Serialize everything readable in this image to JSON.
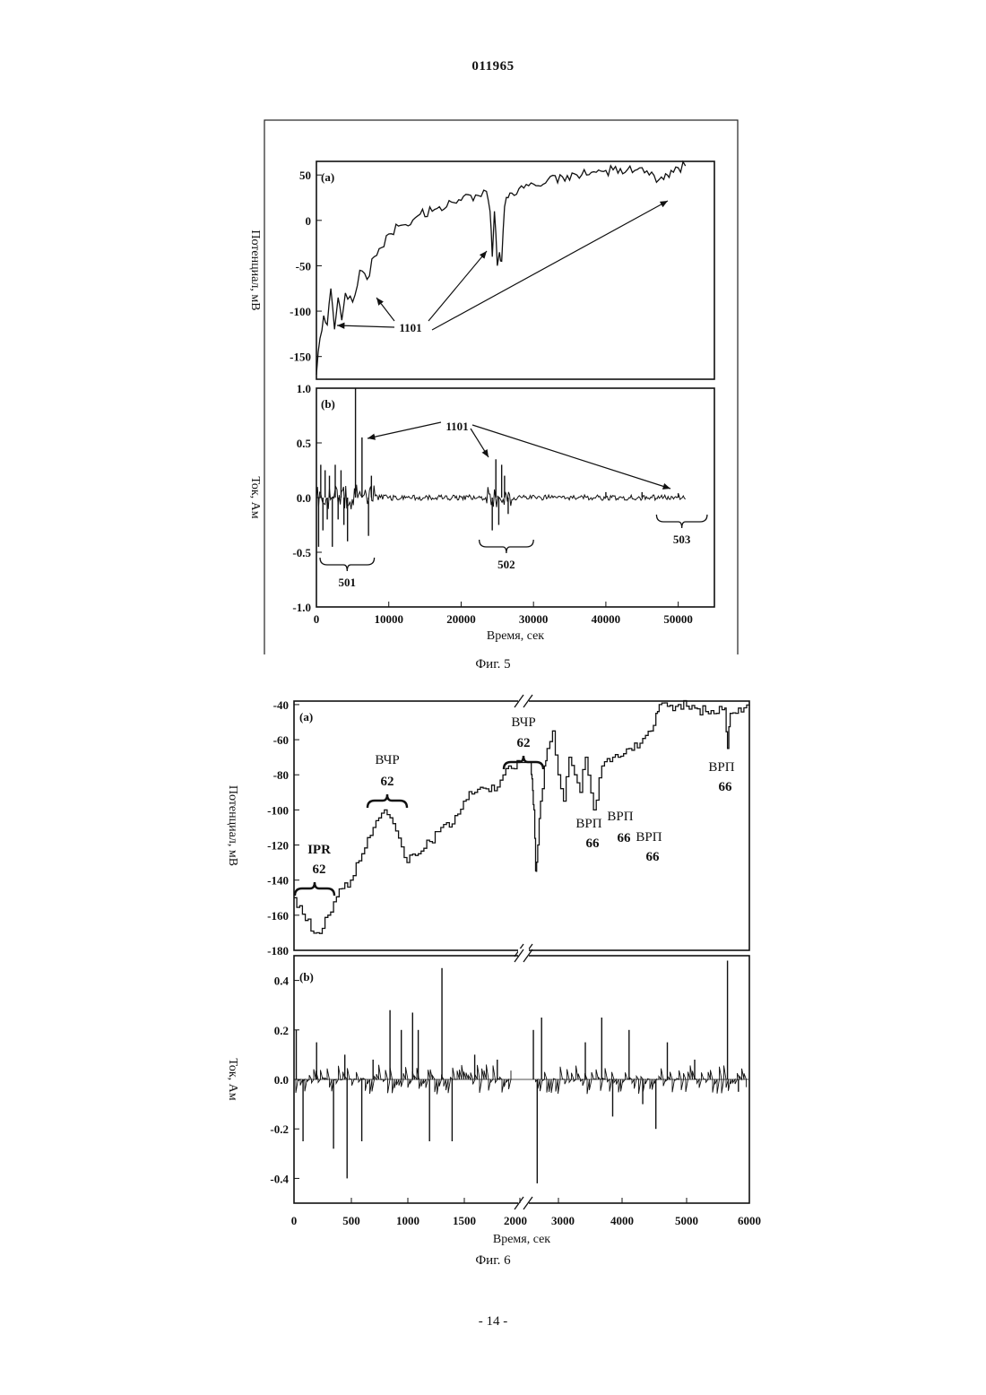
{
  "header": {
    "number": "011965"
  },
  "footer": {
    "page": "- 14 -"
  },
  "figures": [
    {
      "caption": "Фиг. 5"
    },
    {
      "caption": "Фиг. 6"
    }
  ],
  "chart_data": [
    {
      "figure": "Фиг. 5",
      "panel": "(a)",
      "type": "line",
      "xlabel": "Время, сек",
      "ylabel": "Потенциал, мВ",
      "xlim": [
        0,
        55000
      ],
      "ylim": [
        -175,
        65
      ],
      "yticks": [
        50,
        0,
        -50,
        -100,
        -150
      ],
      "x": [
        0,
        500,
        1000,
        1500,
        2000,
        2500,
        3000,
        3500,
        4000,
        5000,
        6000,
        7000,
        8000,
        9000,
        10000,
        12000,
        14000,
        16000,
        18000,
        20000,
        22000,
        23500,
        24000,
        24300,
        24600,
        25000,
        25300,
        25600,
        26000,
        26500,
        27000,
        28000,
        30000,
        32000,
        34000,
        36000,
        38000,
        40000,
        42000,
        44000,
        46000,
        47000,
        48000,
        48500,
        49000,
        50000,
        51000
      ],
      "y": [
        -170,
        -130,
        -105,
        -115,
        -75,
        -120,
        -85,
        -110,
        -80,
        -90,
        -55,
        -65,
        -40,
        -30,
        -15,
        -5,
        5,
        10,
        15,
        22,
        28,
        32,
        10,
        -40,
        10,
        -50,
        -35,
        -45,
        15,
        25,
        30,
        35,
        40,
        45,
        48,
        50,
        53,
        55,
        57,
        55,
        50,
        42,
        45,
        50,
        55,
        58,
        60
      ],
      "annotations": [
        {
          "text": "1101"
        }
      ]
    },
    {
      "figure": "Фиг. 5",
      "panel": "(b)",
      "type": "line",
      "xlabel": "Время, сек",
      "ylabel": "Ток, Ам",
      "xlim": [
        0,
        55000
      ],
      "ylim": [
        -1.0,
        1.0
      ],
      "xticks": [
        0,
        10000,
        20000,
        30000,
        40000,
        50000
      ],
      "yticks": [
        1.0,
        0.5,
        0.0,
        -0.5,
        -1.0
      ],
      "spikes": [
        {
          "x": 300,
          "y": -0.45
        },
        {
          "x": 600,
          "y": 0.3
        },
        {
          "x": 900,
          "y": -0.3
        },
        {
          "x": 1200,
          "y": 0.25
        },
        {
          "x": 1500,
          "y": -0.2
        },
        {
          "x": 1800,
          "y": 0.2
        },
        {
          "x": 2200,
          "y": -0.45
        },
        {
          "x": 2600,
          "y": 0.3
        },
        {
          "x": 3000,
          "y": -0.2
        },
        {
          "x": 3400,
          "y": 0.25
        },
        {
          "x": 3800,
          "y": -0.25
        },
        {
          "x": 4300,
          "y": -0.4
        },
        {
          "x": 5400,
          "y": 1.0
        },
        {
          "x": 6300,
          "y": 0.55
        },
        {
          "x": 7200,
          "y": -0.35
        },
        {
          "x": 7600,
          "y": 0.2
        },
        {
          "x": 24300,
          "y": -0.3
        },
        {
          "x": 24800,
          "y": 0.35
        },
        {
          "x": 25200,
          "y": -0.25
        },
        {
          "x": 25600,
          "y": 0.3
        },
        {
          "x": 26000,
          "y": 0.2
        },
        {
          "x": 26500,
          "y": -0.15
        },
        {
          "x": 40000,
          "y": 0.05
        },
        {
          "x": 45000,
          "y": 0.05
        },
        {
          "x": 50000,
          "y": 0.04
        }
      ],
      "brackets": [
        {
          "from": 500,
          "to": 8000,
          "label": "501"
        },
        {
          "from": 22500,
          "to": 30000,
          "label": "502"
        },
        {
          "from": 47000,
          "to": 54000,
          "label": "503"
        }
      ],
      "annotations": [
        {
          "text": "1101"
        }
      ]
    },
    {
      "figure": "Фиг. 6",
      "panel": "(a)",
      "type": "line",
      "xlabel": "Время, сек",
      "ylabel": "Потенциал, мВ",
      "xtick_labels": [
        "0",
        "500",
        "1000",
        "1500",
        "2000",
        "3000",
        "4000",
        "5000",
        "6000"
      ],
      "ylim": [
        -180,
        -38
      ],
      "yticks": [
        -40,
        -60,
        -80,
        -100,
        -120,
        -140,
        -160,
        -180
      ],
      "axis_break": "2000 / 3000",
      "x": [
        0,
        100,
        200,
        300,
        400,
        500,
        600,
        700,
        800,
        900,
        1000,
        1100,
        1200,
        1300,
        1400,
        1500,
        1600,
        1700,
        1800,
        1900,
        2000,
        2060,
        2090,
        2130,
        2180,
        2250,
        2300,
        2400,
        2500,
        2600,
        2700,
        2800,
        2900,
        3000,
        3150,
        3300,
        3500,
        3600,
        3700,
        3800,
        4000,
        4200,
        4290,
        4350,
        4500,
        4700,
        5000,
        5200,
        5400,
        5550,
        5600,
        5650,
        5800,
        6000
      ],
      "y": [
        -150,
        -163,
        -170,
        -160,
        -145,
        -140,
        -125,
        -110,
        -100,
        -112,
        -130,
        -125,
        -118,
        -110,
        -108,
        -95,
        -90,
        -88,
        -87,
        -75,
        -73,
        -100,
        -135,
        -120,
        -95,
        -75,
        -65,
        -55,
        -80,
        -95,
        -70,
        -80,
        -90,
        -70,
        -100,
        -75,
        -70,
        -70,
        -68,
        -65,
        -62,
        -55,
        -45,
        -40,
        -41,
        -40,
        -42,
        -44,
        -45,
        -42,
        -65,
        -45,
        -42,
        -40
      ],
      "annotations": [
        {
          "text": "IPR",
          "value": "62"
        },
        {
          "text": "ВЧР",
          "value": "62"
        },
        {
          "text": "ВЧР",
          "value": "62"
        },
        {
          "text": "ВРП",
          "value": "66"
        },
        {
          "text": "ВРП",
          "value": "66"
        },
        {
          "text": "ВРП",
          "value": "66"
        },
        {
          "text": "ВРП",
          "value": "66"
        }
      ]
    },
    {
      "figure": "Фиг. 6",
      "panel": "(b)",
      "type": "line",
      "xlabel": "Время, сек",
      "ylabel": "Ток, Ам",
      "xtick_labels": [
        "0",
        "500",
        "1000",
        "1500",
        "2000",
        "3000",
        "4000",
        "5000",
        "6000"
      ],
      "ylim": [
        -0.5,
        0.5
      ],
      "yticks": [
        0.4,
        0.2,
        0.0,
        -0.2,
        -0.4
      ],
      "spikes": [
        {
          "x": 20,
          "y": 0.2
        },
        {
          "x": 80,
          "y": -0.25
        },
        {
          "x": 200,
          "y": 0.15
        },
        {
          "x": 350,
          "y": -0.28
        },
        {
          "x": 450,
          "y": 0.1
        },
        {
          "x": 470,
          "y": -0.4
        },
        {
          "x": 600,
          "y": -0.25
        },
        {
          "x": 700,
          "y": 0.08
        },
        {
          "x": 850,
          "y": 0.28
        },
        {
          "x": 950,
          "y": 0.2
        },
        {
          "x": 1050,
          "y": 0.27
        },
        {
          "x": 1100,
          "y": 0.2
        },
        {
          "x": 1200,
          "y": -0.25
        },
        {
          "x": 1310,
          "y": 0.45
        },
        {
          "x": 1400,
          "y": -0.25
        },
        {
          "x": 1600,
          "y": 0.1
        },
        {
          "x": 1800,
          "y": 0.08
        },
        {
          "x": 2050,
          "y": 0.2
        },
        {
          "x": 2120,
          "y": -0.42
        },
        {
          "x": 2200,
          "y": 0.25
        },
        {
          "x": 3000,
          "y": 0.15
        },
        {
          "x": 3300,
          "y": 0.25
        },
        {
          "x": 3500,
          "y": -0.15
        },
        {
          "x": 3800,
          "y": 0.2
        },
        {
          "x": 4050,
          "y": -0.1
        },
        {
          "x": 4290,
          "y": -0.2
        },
        {
          "x": 4500,
          "y": 0.15
        },
        {
          "x": 5000,
          "y": 0.08
        },
        {
          "x": 5600,
          "y": 0.48
        },
        {
          "x": 5800,
          "y": -0.05
        }
      ]
    }
  ]
}
